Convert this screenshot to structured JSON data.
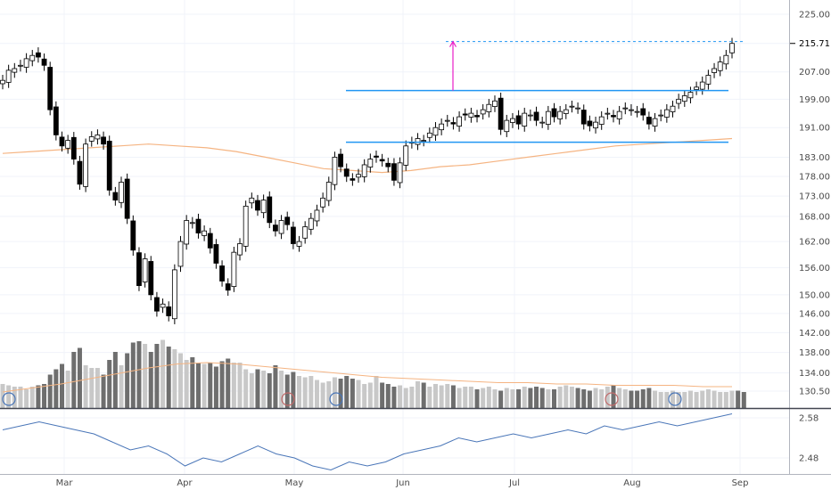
{
  "chart_data": [
    {
      "type": "candlestick",
      "xlabel": "",
      "ylabel": "",
      "x_axis": {
        "tick_labels": [
          "Mar",
          "Apr",
          "May",
          "Jun",
          "Jul",
          "Aug",
          "Sep"
        ]
      },
      "y_axis": {
        "scale": "log",
        "tick_labels": [
          "225.00",
          "215.71",
          "207.00",
          "199.00",
          "191.00",
          "183.00",
          "178.00",
          "173.00",
          "168.00",
          "162.00",
          "156.00",
          "150.00",
          "146.00",
          "142.00",
          "138.00",
          "134.00",
          "130.50"
        ],
        "ylim": [
          129,
          228
        ]
      },
      "last_price": "215.71",
      "grid": true,
      "closes": [
        204.5,
        207.5,
        208.0,
        209.0,
        211.0,
        212.0,
        211.5,
        209.0,
        196.0,
        189.0,
        186.0,
        187.5,
        182.5,
        176.0,
        186.5,
        188.5,
        189.0,
        186.5,
        174.5,
        172.0,
        176.5,
        167.5,
        160.0,
        152.0,
        158.0,
        150.0,
        146.5,
        148.0,
        145.5,
        155.5,
        162.0,
        167.0,
        166.5,
        164.0,
        164.5,
        160.5,
        157.0,
        153.0,
        151.0,
        159.5,
        161.5,
        170.5,
        172.5,
        169.5,
        172.0,
        166.5,
        164.5,
        167.0,
        166.0,
        161.5,
        162.0,
        165.5,
        167.5,
        169.5,
        172.5,
        176.5,
        183.0,
        180.5,
        178.0,
        177.0,
        178.5,
        181.0,
        182.5,
        183.0,
        182.0,
        180.5,
        177.0,
        181.5,
        186.0,
        187.0,
        188.0,
        187.5,
        189.5,
        191.0,
        192.0,
        193.0,
        192.0,
        194.0,
        194.5,
        195.0,
        194.0,
        196.0,
        197.5,
        198.5,
        190.5,
        193.0,
        193.5,
        192.0,
        195.0,
        194.5,
        193.0,
        192.5,
        195.5,
        194.0,
        195.5,
        196.0,
        197.0,
        196.5,
        192.0,
        191.5,
        192.5,
        194.0,
        195.0,
        194.0,
        195.5,
        196.5,
        196.0,
        195.5,
        194.5,
        192.0,
        193.5,
        194.5,
        196.0,
        197.0,
        199.0,
        200.0,
        201.0,
        202.5,
        204.0,
        206.0,
        208.0,
        210.0,
        212.0,
        215.71
      ],
      "ma_values": [
        184.0,
        184.5,
        185.0,
        185.5,
        186.0,
        186.5,
        186.0,
        185.5,
        184.5,
        183.0,
        181.5,
        180.0,
        179.5,
        179.0,
        179.5,
        180.5,
        181.0,
        182.0,
        183.0,
        184.0,
        185.0,
        186.0,
        186.5,
        187.0,
        187.5,
        188.0
      ],
      "volume": {
        "values": [
          9.0,
          8.5,
          8.0,
          8.0,
          7.0,
          8.0,
          8.5,
          9.0,
          12.5,
          14.5,
          16.5,
          14.0,
          21.0,
          22.5,
          16.0,
          15.0,
          15.0,
          12.5,
          18.0,
          21.0,
          16.0,
          20.5,
          24.5,
          25.0,
          24.0,
          21.0,
          24.0,
          25.5,
          23.0,
          22.0,
          20.5,
          18.0,
          19.0,
          17.0,
          16.5,
          17.0,
          15.5,
          17.5,
          18.5,
          17.0,
          17.0,
          14.5,
          13.0,
          14.5,
          14.0,
          13.0,
          16.0,
          14.0,
          12.5,
          13.5,
          12.0,
          11.5,
          12.0,
          10.5,
          9.5,
          10.0,
          11.5,
          11.0,
          12.0,
          11.0,
          10.5,
          9.0,
          9.5,
          12.0,
          9.5,
          9.0,
          8.0,
          8.5,
          7.5,
          8.0,
          10.0,
          9.5,
          8.0,
          9.0,
          8.5,
          9.0,
          8.5,
          7.5,
          8.0,
          8.0,
          7.0,
          7.5,
          8.0,
          7.0,
          6.5,
          7.5,
          7.0,
          7.0,
          8.0,
          7.5,
          8.0,
          7.5,
          7.0,
          7.0,
          8.0,
          8.5,
          8.0,
          7.5,
          7.0,
          6.5,
          7.5,
          7.0,
          8.0,
          8.5,
          7.5,
          7.0,
          6.5,
          6.5,
          7.0,
          7.5,
          6.5,
          6.0,
          6.0,
          6.5,
          6.0,
          6.0,
          6.5,
          6.0,
          6.5,
          7.0,
          6.5,
          6.0,
          6.0,
          6.5,
          6.5,
          6.0
        ],
        "ma_values": [
          6.0,
          7.5,
          9.0,
          11.0,
          13.0,
          15.0,
          16.5,
          17.0,
          16.5,
          15.5,
          14.5,
          13.5,
          12.5,
          11.5,
          11.0,
          10.5,
          10.0,
          9.5,
          9.5,
          9.0,
          9.0,
          8.5,
          8.5,
          8.5,
          8.0,
          8.0
        ]
      },
      "relative_strength": {
        "tick_labels": [
          "2.58",
          "2.48"
        ],
        "values": [
          2.55,
          2.56,
          2.57,
          2.56,
          2.55,
          2.54,
          2.52,
          2.5,
          2.51,
          2.49,
          2.46,
          2.48,
          2.47,
          2.49,
          2.51,
          2.49,
          2.48,
          2.46,
          2.45,
          2.47,
          2.46,
          2.47,
          2.49,
          2.5,
          2.51,
          2.53,
          2.52,
          2.53,
          2.54,
          2.53,
          2.54,
          2.55,
          2.54,
          2.56,
          2.55,
          2.56,
          2.57,
          2.56,
          2.57,
          2.58,
          2.59
        ]
      },
      "annotations": {
        "base_box": {
          "top": 201.5,
          "bottom": 187.0
        },
        "target_line": 216.3,
        "measured_move": {
          "from": 201.5,
          "to": 216.3
        }
      },
      "colors": {
        "up_body": "#ffffff",
        "down_body": "#000000",
        "wick": "#000000",
        "ma": "#f5b482",
        "box_lines": "#2196f3",
        "measured_move": "#e91ec8",
        "target": "#2196f3",
        "volume_up": "#c8c8c8",
        "volume_down": "#6e6e6e",
        "rs_line": "#4a76b8"
      }
    }
  ]
}
